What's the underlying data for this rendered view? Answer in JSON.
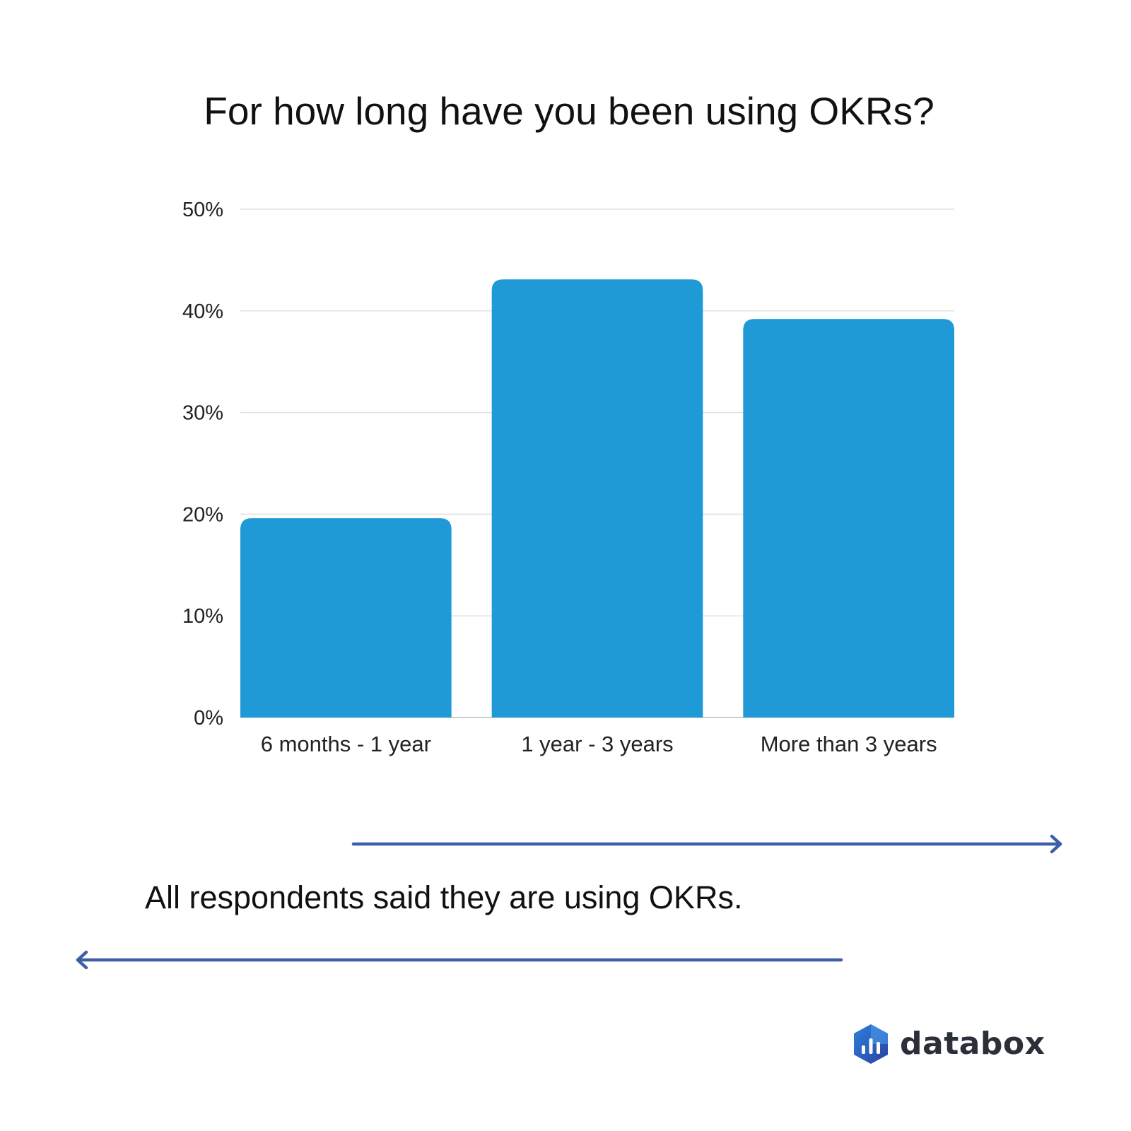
{
  "chart_data": {
    "type": "bar",
    "title": "For how long have you been using OKRs?",
    "categories": [
      "6 months - 1 year",
      "1 year - 3 years",
      "More than 3 years"
    ],
    "values": [
      19.6,
      43.1,
      39.2
    ],
    "ylim": [
      0,
      50
    ],
    "yticks": [
      0,
      10,
      20,
      30,
      40,
      50
    ],
    "ytick_labels": [
      "0%",
      "10%",
      "20%",
      "30%",
      "40%",
      "50%"
    ],
    "xlabel": "",
    "ylabel": "",
    "grid": true,
    "legend": "none",
    "bar_color": "#1f9ad6"
  },
  "caption": "All respondents said they are using OKRs.",
  "brand": {
    "name": "databox",
    "logo_icon": "databox-logo-icon"
  },
  "colors": {
    "bar": "#1f9ad6",
    "arrow": "#3f5ea8",
    "gridline": "#e0e0e0",
    "text": "#111111"
  },
  "decor": {
    "arrow_right_icon": "arrow-right-icon",
    "arrow_left_icon": "arrow-left-icon"
  }
}
